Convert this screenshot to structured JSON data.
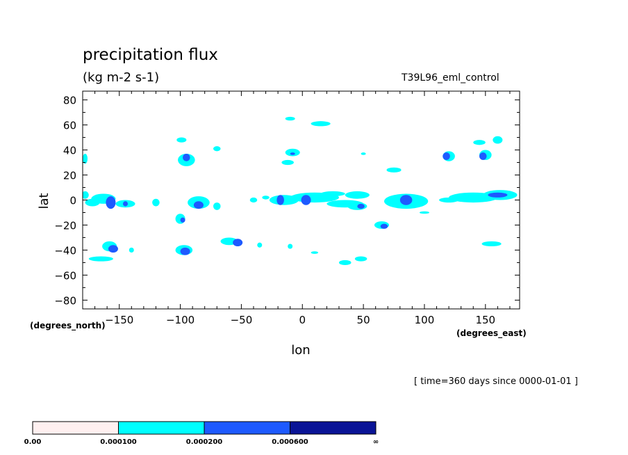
{
  "chart_data": {
    "type": "contour",
    "title": "precipitation flux",
    "units": "(kg m-2 s-1)",
    "experiment": "T39L96_eml_control",
    "time_label": "[ time=360 days since 0000-01-01 ]",
    "xlabel": "lon",
    "ylabel": "lat",
    "x_units": "(degrees_east)",
    "y_units": "(degrees_north)",
    "xlim": [
      -180,
      178
    ],
    "ylim": [
      -87,
      87
    ],
    "xticks": [
      -150,
      -100,
      -50,
      0,
      50,
      100,
      150
    ],
    "xtick_labels": [
      "−150",
      "−100",
      "−50",
      "0",
      "50",
      "100",
      "150"
    ],
    "yticks": [
      80,
      60,
      40,
      20,
      0,
      -20,
      -40,
      -60,
      -80
    ],
    "ytick_labels": [
      "80",
      "60",
      "40",
      "20",
      "0",
      "−20",
      "−40",
      "−60",
      "−80"
    ],
    "levels": [
      {
        "label": "0.00",
        "color": "#fff0f0"
      },
      {
        "label": "0.000100",
        "color": "#00ffff"
      },
      {
        "label": "0.000200",
        "color": "#1e5aff"
      },
      {
        "label": "0.000600",
        "color": "#0a1496"
      },
      {
        "label": "∞",
        "color": ""
      }
    ],
    "regions_level1": [
      [
        -163,
        1,
        10,
        4
      ],
      [
        -145,
        -3,
        8,
        3
      ],
      [
        -172,
        -2,
        6,
        3
      ],
      [
        -178,
        4,
        3,
        3
      ],
      [
        -178,
        33,
        2,
        4
      ],
      [
        -95,
        32,
        7,
        5
      ],
      [
        -99,
        48,
        4,
        2
      ],
      [
        -85,
        -2,
        9,
        5
      ],
      [
        -100,
        -15,
        4,
        4
      ],
      [
        -70,
        41,
        3,
        2
      ],
      [
        -60,
        -33,
        7,
        3
      ],
      [
        -158,
        -37,
        6,
        4
      ],
      [
        -97,
        -40,
        7,
        4
      ],
      [
        -165,
        -47,
        10,
        2
      ],
      [
        -15,
        0,
        12,
        4
      ],
      [
        10,
        2,
        20,
        4
      ],
      [
        45,
        4,
        10,
        3
      ],
      [
        35,
        -3,
        15,
        3
      ],
      [
        -8,
        38,
        6,
        3
      ],
      [
        -12,
        30,
        5,
        2
      ],
      [
        15,
        61,
        8,
        2
      ],
      [
        -10,
        65,
        4,
        1.5
      ],
      [
        45,
        -5,
        8,
        3
      ],
      [
        85,
        -1,
        18,
        6
      ],
      [
        65,
        -20,
        6,
        3
      ],
      [
        120,
        35,
        5,
        4
      ],
      [
        150,
        36,
        5,
        4
      ],
      [
        145,
        46,
        5,
        2
      ],
      [
        160,
        48,
        4,
        3
      ],
      [
        140,
        2,
        20,
        4
      ],
      [
        162,
        4,
        14,
        4
      ],
      [
        75,
        24,
        6,
        2
      ],
      [
        35,
        -50,
        5,
        2
      ],
      [
        48,
        -47,
        5,
        2
      ],
      [
        155,
        -35,
        8,
        2
      ],
      [
        -35,
        -36,
        2,
        2
      ],
      [
        -10,
        -37,
        2,
        2
      ],
      [
        -40,
        0,
        3,
        2
      ],
      [
        25,
        5,
        10,
        2
      ],
      [
        -120,
        -2,
        3,
        3
      ],
      [
        -70,
        -5,
        3,
        3
      ],
      [
        -140,
        -40,
        2,
        2
      ],
      [
        -30,
        2,
        3,
        1.5
      ],
      [
        50,
        37,
        2,
        1
      ],
      [
        10,
        -42,
        3,
        1
      ],
      [
        120,
        0,
        8,
        2
      ],
      [
        100,
        -10,
        4,
        1
      ]
    ],
    "regions_level2": [
      [
        -157,
        -2,
        4,
        5
      ],
      [
        -145,
        -3,
        2,
        2
      ],
      [
        -95,
        34,
        3,
        3
      ],
      [
        -85,
        -4,
        4,
        3
      ],
      [
        -98,
        -16,
        2,
        2
      ],
      [
        -155,
        -39,
        4,
        3
      ],
      [
        -96,
        -41,
        4,
        3
      ],
      [
        -53,
        -34,
        4,
        3
      ],
      [
        -18,
        0,
        3,
        4
      ],
      [
        3,
        0,
        4,
        4
      ],
      [
        48,
        -5,
        3,
        2
      ],
      [
        85,
        0,
        5,
        4
      ],
      [
        67,
        -21,
        3,
        2
      ],
      [
        118,
        35,
        3,
        3
      ],
      [
        148,
        35,
        3,
        3
      ],
      [
        160,
        4,
        8,
        2
      ],
      [
        -8,
        37,
        2,
        1
      ]
    ]
  }
}
